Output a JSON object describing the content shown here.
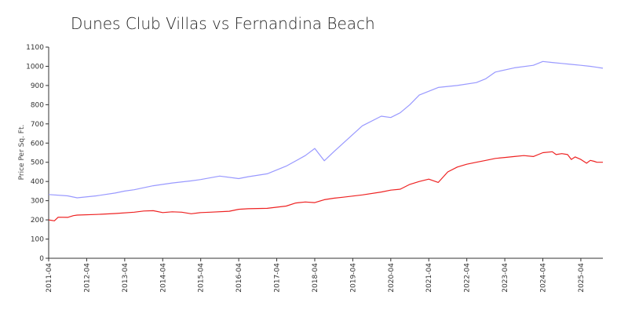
{
  "chart_data": {
    "type": "line",
    "title": "Dunes Club Villas vs Fernandina Beach",
    "xlabel": "",
    "ylabel": "Price Per Sq. Ft.",
    "ylim": [
      0,
      1100
    ],
    "yticks": [
      0,
      100,
      200,
      300,
      400,
      500,
      600,
      700,
      800,
      900,
      1000,
      1100
    ],
    "xlim": [
      2011.25,
      2025.83
    ],
    "xticks": [
      "2011-04",
      "2012-04",
      "2013-04",
      "2014-04",
      "2015-04",
      "2016-04",
      "2017-04",
      "2018-04",
      "2019-04",
      "2020-04",
      "2021-04",
      "2022-04",
      "2023-04",
      "2024-04",
      "2025-04"
    ],
    "grid": false,
    "legend": "none",
    "series": [
      {
        "color": "#9999ff",
        "x": [
          2011.25,
          2011.75,
          2012.0,
          2012.5,
          2013.0,
          2013.25,
          2013.5,
          2014.0,
          2014.5,
          2015.0,
          2015.25,
          2015.75,
          2016.25,
          2016.5,
          2017.0,
          2017.5,
          2018.0,
          2018.25,
          2018.5,
          2018.75,
          2019.0,
          2019.5,
          2020.0,
          2020.25,
          2020.5,
          2020.75,
          2021.0,
          2021.5,
          2022.0,
          2022.5,
          2022.75,
          2023.0,
          2023.5,
          2024.0,
          2024.25,
          2024.5,
          2024.75,
          2025.0,
          2025.25,
          2025.5,
          2025.67,
          2025.83
        ],
        "values": [
          332,
          325,
          315,
          325,
          340,
          350,
          357,
          378,
          392,
          403,
          410,
          428,
          415,
          425,
          440,
          480,
          535,
          572,
          508,
          555,
          600,
          690,
          740,
          733,
          758,
          800,
          850,
          890,
          900,
          915,
          935,
          970,
          992,
          1005,
          1025,
          1020,
          1015,
          1010,
          1005,
          1000,
          995,
          990
        ]
      },
      {
        "color": "#ee2222",
        "x": [
          2011.25,
          2011.4,
          2011.5,
          2011.75,
          2011.9,
          2012.0,
          2012.5,
          2013.0,
          2013.5,
          2013.75,
          2014.0,
          2014.25,
          2014.5,
          2014.75,
          2015.0,
          2015.25,
          2015.5,
          2016.0,
          2016.25,
          2016.5,
          2017.0,
          2017.5,
          2017.75,
          2018.0,
          2018.25,
          2018.5,
          2018.75,
          2019.0,
          2019.5,
          2020.0,
          2020.25,
          2020.5,
          2020.75,
          2021.0,
          2021.25,
          2021.5,
          2021.75,
          2022.0,
          2022.25,
          2022.5,
          2022.75,
          2023.0,
          2023.25,
          2023.5,
          2023.75,
          2024.0,
          2024.25,
          2024.5,
          2024.6,
          2024.75,
          2024.9,
          2025.0,
          2025.1,
          2025.25,
          2025.4,
          2025.5,
          2025.6,
          2025.67,
          2025.75,
          2025.83
        ],
        "values": [
          200,
          195,
          214,
          213,
          222,
          225,
          228,
          233,
          240,
          246,
          248,
          238,
          242,
          240,
          232,
          238,
          240,
          245,
          255,
          258,
          260,
          272,
          288,
          293,
          290,
          305,
          313,
          318,
          330,
          345,
          355,
          360,
          385,
          400,
          412,
          395,
          450,
          475,
          490,
          500,
          510,
          520,
          525,
          530,
          535,
          530,
          550,
          555,
          540,
          545,
          540,
          515,
          528,
          515,
          495,
          510,
          505,
          500,
          500,
          500
        ]
      }
    ]
  }
}
